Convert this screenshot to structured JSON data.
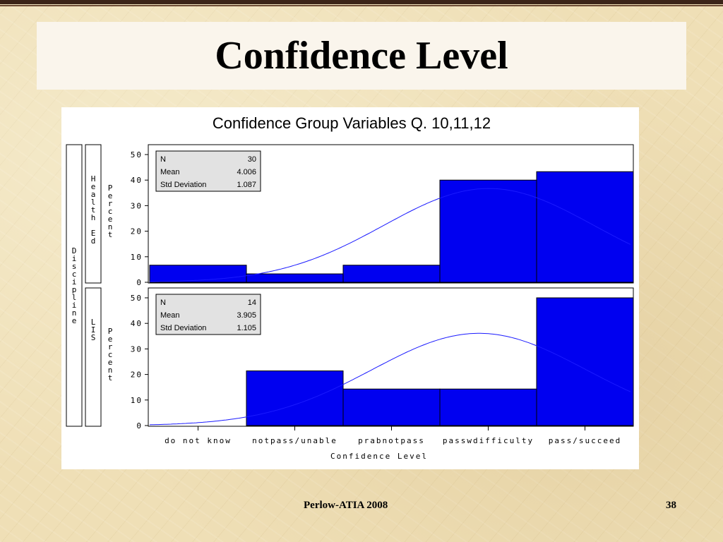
{
  "slide": {
    "title": "Confidence Level",
    "footer_text": "Perlow-ATIA 2008",
    "page_number": "38"
  },
  "chart_data": {
    "type": "bar",
    "title": "Confidence Group Variables Q. 10,11,12",
    "xlabel": "Confidence Level",
    "categories": [
      "do not know",
      "notpass/unable",
      "prabnotpass",
      "passwdifficulty",
      "pass/succeed"
    ],
    "outer_label": "Discipline",
    "ylabel": "Percent",
    "ylim": [
      0,
      50
    ],
    "yticks": [
      0,
      10,
      20,
      30,
      40,
      50
    ],
    "colors": {
      "bar": "#0000f0",
      "curve": "#1a1aff"
    },
    "panels": [
      {
        "group": "Health Ed",
        "values": [
          6.7,
          3.3,
          6.7,
          40,
          43.3
        ],
        "stats": {
          "N": "30",
          "Mean": "4.006",
          "Std Deviation": "1.087"
        }
      },
      {
        "group": "LIS",
        "values": [
          0,
          21.4,
          14.3,
          14.3,
          50
        ],
        "stats": {
          "N": "14",
          "Mean": "3.905",
          "Std Deviation": "1.105"
        }
      }
    ]
  }
}
